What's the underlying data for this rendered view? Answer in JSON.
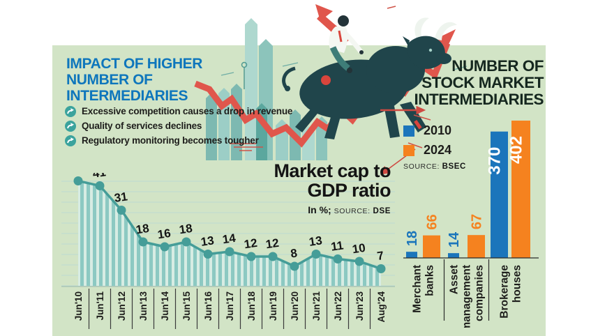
{
  "page": {
    "colors": {
      "panel_bg": "#d2e4c6",
      "headline_blue": "#0e76bc",
      "text_dark": "#1d1d1b",
      "teal_line": "#459d98",
      "stripe_teal": "#8cc9c2",
      "stripe_pale": "#d7ece3",
      "grid_teal": "#bcdad2",
      "red_accent": "#e0564c",
      "bull_dark": "#20454b",
      "bar_blue": "#1b75bb",
      "bar_orange": "#f5821f"
    }
  },
  "left_title": {
    "lines": [
      "IMPACT OF HIGHER",
      "NUMBER OF",
      "INTERMEDIARIES"
    ]
  },
  "bullets": {
    "icon": "circular-arrow",
    "items": [
      "Excessive competition causes a drop in revenue",
      "Quality of services declines",
      "Regulatory monitoring becomes tougher"
    ]
  },
  "mcap": {
    "title_lines": [
      "Market cap to",
      "GDP ratio"
    ],
    "unit_text": "In %;",
    "source_label": "SOURCE:",
    "source_value": "DSE"
  },
  "right_chart": {
    "title_lines": [
      "NUMBER OF",
      "STOCK MARKET",
      "INTERMEDIARIES"
    ],
    "legend": [
      {
        "label": "2010",
        "color": "#1b75bb"
      },
      {
        "label": "2024",
        "color": "#f5821f"
      }
    ],
    "source_label": "SOURCE:",
    "source_value": "BSEC"
  },
  "chart_data": [
    {
      "type": "area",
      "title": "Market cap to GDP ratio",
      "ylabel": "Market cap to GDP ratio (%)",
      "xlabel": "",
      "unit": "%",
      "source": "DSE",
      "grid": true,
      "ylim": [
        0,
        46
      ],
      "x": [
        "Jun'10",
        "Jun'11",
        "Jun'12",
        "Jun'13",
        "Jun'14",
        "Jun'15",
        "Jun'16",
        "Jun'17",
        "Jun'18",
        "Jun'19",
        "Jun'20",
        "Jun'21",
        "Jun'22",
        "Jun'23",
        "Aug'24"
      ],
      "values": [
        43,
        41,
        31,
        18,
        16,
        18,
        13,
        14,
        12,
        12,
        8,
        13,
        11,
        10,
        7
      ]
    },
    {
      "type": "bar",
      "title": "Number of stock market intermediaries",
      "source": "BSEC",
      "legend_position": "top-left",
      "categories": [
        "Merchant banks",
        "Asset management companies",
        "Brokerage houses"
      ],
      "category_label_lines": [
        [
          "Merchant",
          "banks"
        ],
        [
          "Asset",
          "management",
          "companies"
        ],
        [
          "Brokerage",
          "houses"
        ]
      ],
      "series": [
        {
          "name": "2010",
          "color": "#1b75bb",
          "values": [
            18,
            14,
            370
          ]
        },
        {
          "name": "2024",
          "color": "#f5821f",
          "values": [
            66,
            67,
            402
          ]
        }
      ]
    }
  ]
}
